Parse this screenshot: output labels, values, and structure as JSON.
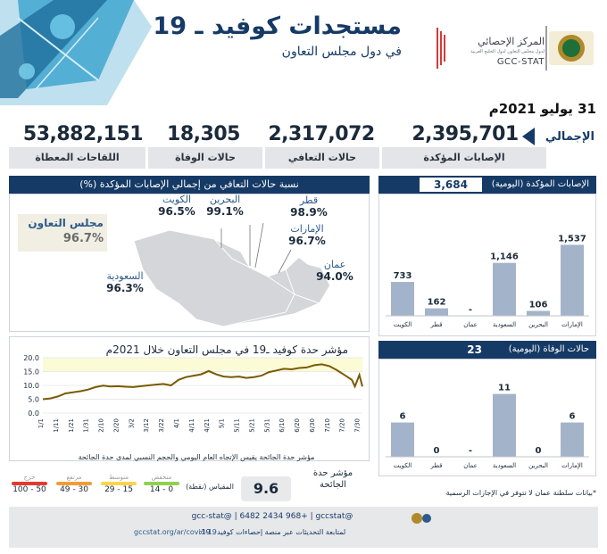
{
  "header": {
    "title": "مستجدات كوفيد ـ 19",
    "subtitle": "في دول مجلس التعاون",
    "logo_ar": "المركز الإحصائي",
    "logo_ar_small": "لدول مجلس التعاون لدول الخليج العربية",
    "logo_en": "GCC-STAT"
  },
  "date": "31 يوليو 2021م",
  "totals": {
    "label": "الإجمالي",
    "items": [
      {
        "label": "الإصابات المؤكدة",
        "value": "2,395,701"
      },
      {
        "label": "حالات التعافي",
        "value": "2,317,072"
      },
      {
        "label": "حالات الوفاة",
        "value": "18,305"
      },
      {
        "label": "اللقاحات المعطاة",
        "value": "53,882,151"
      }
    ]
  },
  "recovery": {
    "title": "نسبة حالات التعافي من إجمالي الإصابات المؤكدة (%)",
    "gcc_name": "مجلس التعاون",
    "gcc_value": "96.7%",
    "countries": [
      {
        "name": "الكويت",
        "value": "96.5%"
      },
      {
        "name": "البحرين",
        "value": "99.1%"
      },
      {
        "name": "قطر",
        "value": "98.9%"
      },
      {
        "name": "الإمارات",
        "value": "96.7%"
      },
      {
        "name": "عمان",
        "value": "94.0%"
      },
      {
        "name": "السعودية",
        "value": "96.3%"
      }
    ]
  },
  "chart_data": [
    {
      "type": "bar",
      "title": "الإصابات المؤكدة (اليومية)",
      "total": "3,684",
      "categories": [
        "الكويت",
        "قطر",
        "عمان",
        "السعودية",
        "البحرين",
        "الإمارات"
      ],
      "values": [
        733,
        162,
        null,
        1146,
        106,
        1537
      ],
      "value_labels": [
        "733",
        "162",
        "-",
        "1,146",
        "106",
        "1,537"
      ],
      "ylim": [
        0,
        1700
      ]
    },
    {
      "type": "bar",
      "title": "حالات الوفاة (اليومية)",
      "total": "23",
      "categories": [
        "الكويت",
        "قطر",
        "عمان",
        "السعودية",
        "البحرين",
        "الإمارات"
      ],
      "values": [
        6,
        0,
        null,
        11,
        0,
        6
      ],
      "value_labels": [
        "6",
        "0",
        "-",
        "11",
        "0",
        "6"
      ],
      "ylim": [
        0,
        12.5
      ]
    },
    {
      "type": "line",
      "title": "مؤشر حدة كوفيد ـ19 في مجلس التعاون خلال 2021م",
      "subtitle": "مؤشر حدة الجائحة يقيس الإتجاه العام اليومي والحجم النسبي لمدى حدة الجائحة",
      "ylim": [
        0,
        20
      ],
      "yticks": [
        "0.0",
        "5.0",
        "10.0",
        "15.0",
        "20.0"
      ],
      "xticks": [
        "1/1",
        "1/11",
        "1/21",
        "1/31",
        "2/10",
        "2/20",
        "3/2",
        "3/12",
        "3/22",
        "4/1",
        "4/11",
        "4/21",
        "5/1",
        "5/11",
        "5/21",
        "5/31",
        "6/10",
        "6/20",
        "6/30",
        "7/10",
        "7/20",
        "7/30"
      ],
      "x": [
        0,
        5,
        10,
        15,
        20,
        25,
        30,
        35,
        40,
        45,
        50,
        55,
        60,
        65,
        70,
        75,
        80,
        85,
        90,
        95,
        100,
        105,
        110,
        115,
        120,
        125,
        130,
        135,
        140,
        145,
        150,
        155,
        160,
        165,
        170,
        175,
        180,
        185,
        190,
        195,
        200,
        205,
        207,
        210,
        212
      ],
      "values": [
        5.0,
        5.3,
        6.0,
        7.1,
        7.5,
        7.9,
        8.5,
        9.4,
        9.9,
        9.6,
        9.7,
        9.5,
        9.4,
        9.7,
        10.0,
        10.3,
        10.5,
        10.0,
        12.0,
        13.0,
        13.5,
        14.0,
        15.2,
        14.0,
        13.2,
        13.0,
        13.2,
        12.7,
        13.0,
        13.5,
        14.8,
        15.4,
        16.0,
        15.8,
        16.3,
        16.5,
        17.3,
        17.6,
        17.0,
        15.5,
        13.8,
        12.0,
        9.6,
        13.8,
        9.6
      ],
      "bands": [
        {
          "from": 0,
          "to": 15,
          "color": "#ffffff"
        },
        {
          "from": 15,
          "to": 20,
          "color": "#fbfbd6"
        }
      ]
    }
  ],
  "severity": {
    "label": "مؤشر حدة الجائحة",
    "value": "9.6",
    "scale_label": "المقياس (نقطة)",
    "bands": [
      {
        "name": "منخفض",
        "range": "14 - 0",
        "color": "#8fd14f"
      },
      {
        "name": "متوسط",
        "range": "29 - 15",
        "color": "#ffd44a"
      },
      {
        "name": "مرتفع",
        "range": "49 - 30",
        "color": "#f39c34"
      },
      {
        "name": "حرج",
        "range": "100 - 50",
        "color": "#e23a2e"
      }
    ]
  },
  "oman_note": "*بيانات سلطنة عمان لا تتوفر في الإجازات الرسمية",
  "footer": {
    "contacts": "gcc-stat@ | 6482 2434 968+ | gccstat@",
    "text": "لمتابعة التحديثات عبر منصة إحصاءات كوفيد ـ 19:",
    "url": "gccstat.org/ar/covid-19"
  },
  "colors": {
    "navy": "#163a66",
    "bar": "#a3b3c9",
    "line": "#7a5a00"
  }
}
